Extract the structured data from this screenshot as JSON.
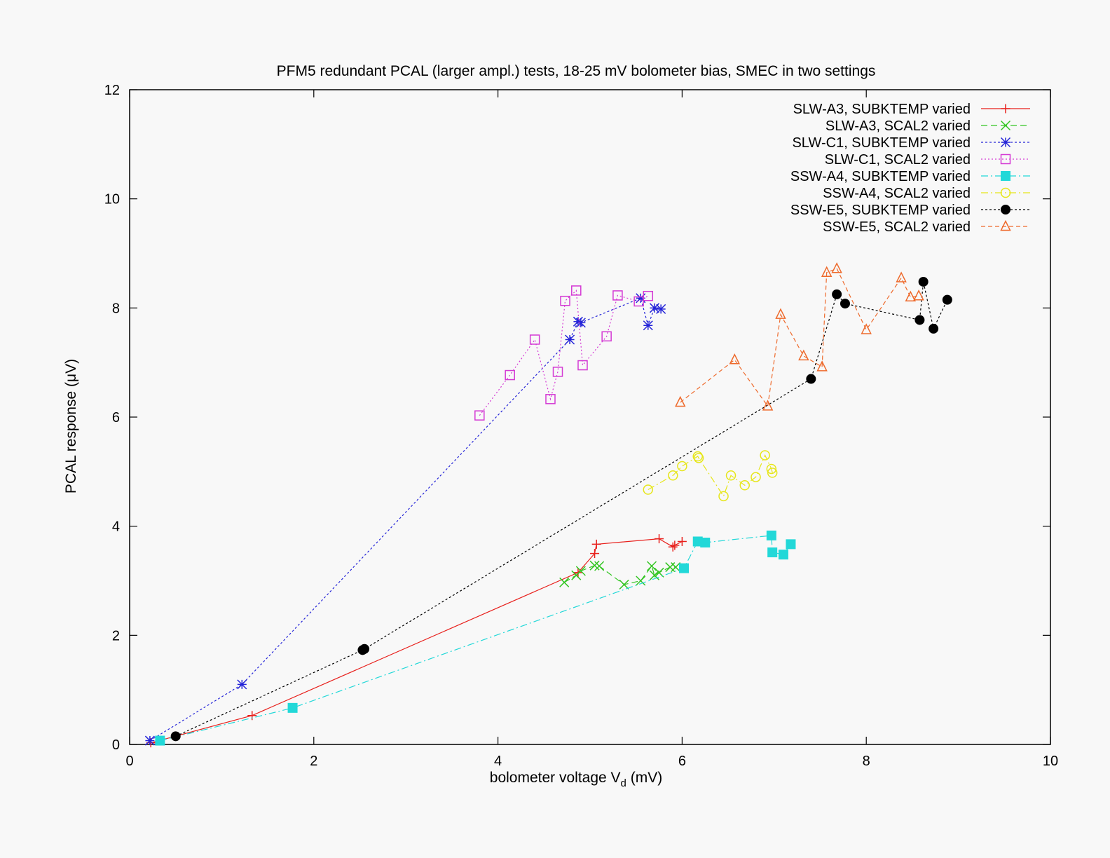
{
  "chart_data": {
    "type": "line",
    "title": "PFM5 redundant PCAL (larger ampl.) tests, 18-25 mV bolometer bias, SMEC in two settings",
    "xlabel": "bolometer voltage V",
    "xlabel_sub": "d",
    "xlabel_unit": " (mV)",
    "ylabel": "PCAL response (μV)",
    "xlim": [
      0,
      10
    ],
    "ylim": [
      0,
      12
    ],
    "xticks": [
      0,
      2,
      4,
      6,
      8,
      10
    ],
    "yticks": [
      0,
      2,
      4,
      6,
      8,
      10,
      12
    ],
    "grid": false,
    "legend_position": "top-right",
    "series": [
      {
        "name": "SLW-A3, SUBKTEMP varied",
        "color": "#e8201c",
        "dash": "",
        "marker": "plus",
        "x": [
          0.23,
          1.33,
          4.87,
          5.05,
          5.07,
          5.75,
          5.9,
          5.92,
          6.0
        ],
        "y": [
          0.03,
          0.53,
          3.15,
          3.5,
          3.67,
          3.77,
          3.62,
          3.65,
          3.72
        ]
      },
      {
        "name": "SLW-A3, SCAL2 varied",
        "color": "#33c522",
        "dash": "9,5",
        "marker": "x",
        "x": [
          4.72,
          4.85,
          4.9,
          5.05,
          5.1,
          5.37,
          5.55,
          5.67,
          5.7,
          5.75,
          5.87,
          5.93
        ],
        "y": [
          2.97,
          3.1,
          3.18,
          3.28,
          3.27,
          2.93,
          3.0,
          3.27,
          3.1,
          3.15,
          3.25,
          3.25
        ]
      },
      {
        "name": "SLW-C1, SUBKTEMP varied",
        "color": "#2424d8",
        "dash": "3,3",
        "marker": "star",
        "x": [
          0.22,
          1.22,
          4.78,
          4.87,
          4.9,
          5.55,
          5.63,
          5.7,
          5.77
        ],
        "y": [
          0.07,
          1.1,
          7.42,
          7.75,
          7.73,
          8.18,
          7.68,
          8.0,
          7.98
        ]
      },
      {
        "name": "SLW-C1, SCAL2 varied",
        "color": "#d43ad4",
        "dash": "2,3",
        "marker": "square",
        "x": [
          3.8,
          4.13,
          4.4,
          4.57,
          4.65,
          4.73,
          4.85,
          4.92,
          5.18,
          5.3,
          5.53,
          5.63
        ],
        "y": [
          6.03,
          6.77,
          7.42,
          6.33,
          6.83,
          8.13,
          8.32,
          6.95,
          7.48,
          8.23,
          8.12,
          8.22
        ]
      },
      {
        "name": "SSW-A4, SUBKTEMP varied",
        "color": "#22d8d8",
        "dash": "10,4,2,4",
        "marker": "filled-square",
        "x": [
          0.33,
          1.77,
          6.02,
          6.17,
          6.25,
          6.97,
          6.98,
          7.1,
          7.18
        ],
        "y": [
          0.07,
          0.67,
          3.23,
          3.72,
          3.7,
          3.83,
          3.52,
          3.48,
          3.67
        ]
      },
      {
        "name": "SSW-A4, SCAL2 varied",
        "color": "#e6e61a",
        "dash": "10,4,2,4",
        "marker": "circle",
        "x": [
          5.63,
          5.9,
          6.0,
          6.17,
          6.18,
          6.45,
          6.53,
          6.68,
          6.8,
          6.9,
          6.97,
          6.98
        ],
        "y": [
          4.67,
          4.93,
          5.1,
          5.28,
          5.25,
          4.55,
          4.93,
          4.75,
          4.9,
          5.3,
          5.05,
          4.98
        ]
      },
      {
        "name": "SSW-E5, SUBKTEMP varied",
        "color": "#000000",
        "dash": "3,3",
        "marker": "filled-circle",
        "x": [
          0.5,
          2.53,
          2.55,
          7.4,
          7.68,
          7.77,
          8.58,
          8.62,
          8.73,
          8.88
        ],
        "y": [
          0.15,
          1.73,
          1.75,
          6.7,
          8.25,
          8.08,
          7.78,
          8.48,
          7.62,
          8.15
        ]
      },
      {
        "name": "SSW-E5, SCAL2 varied",
        "color": "#ee6a2c",
        "dash": "6,4",
        "marker": "triangle",
        "x": [
          5.98,
          6.57,
          6.93,
          7.07,
          7.32,
          7.52,
          7.57,
          7.68,
          8.0,
          8.38,
          8.48,
          8.57
        ],
        "y": [
          6.27,
          7.05,
          6.2,
          7.88,
          7.12,
          6.92,
          8.65,
          8.72,
          7.6,
          8.55,
          8.2,
          8.22
        ]
      }
    ]
  }
}
